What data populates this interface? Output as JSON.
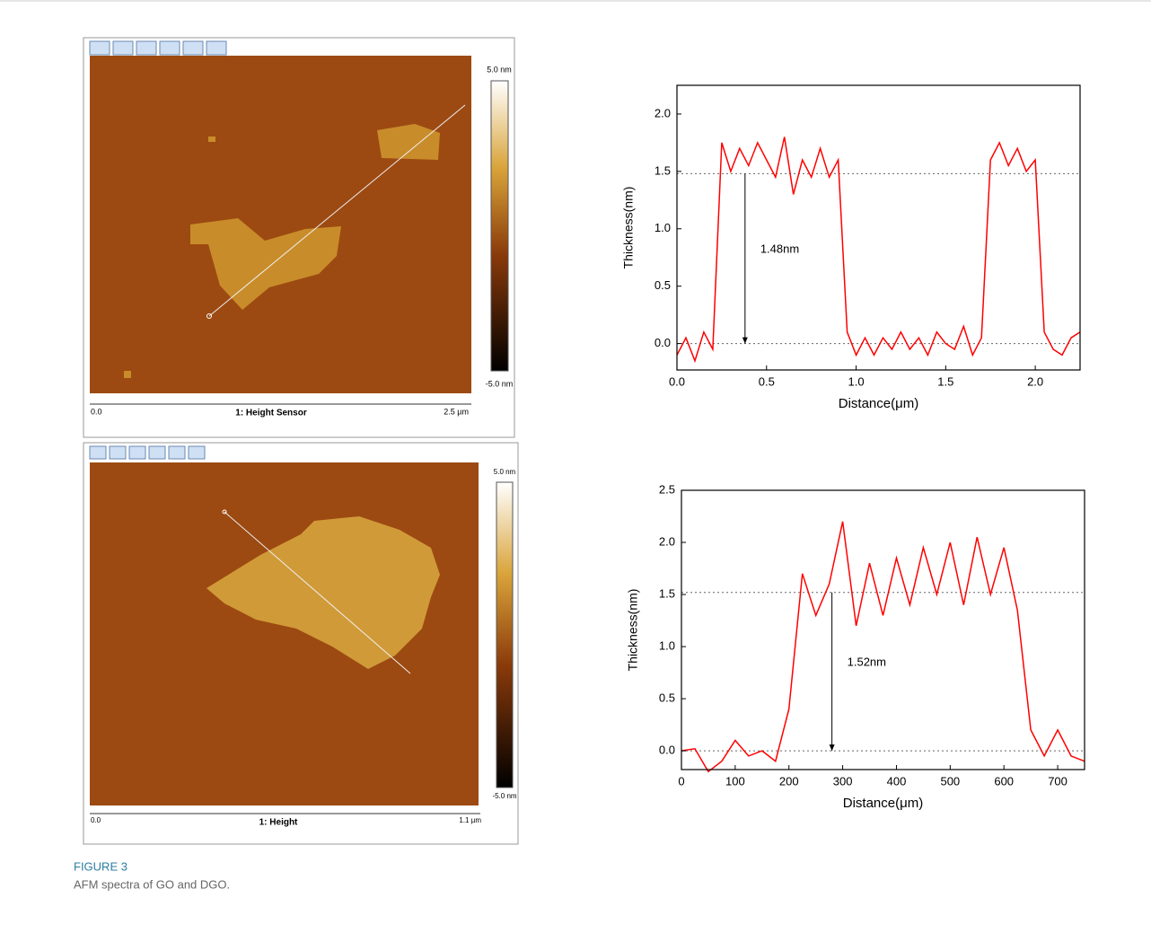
{
  "afm_images": [
    {
      "scale_max": "5.0 nm",
      "scale_min": "-5.0 nm",
      "axis_start": "0.0",
      "channel": "1: Height Sensor",
      "axis_end": "2.5 µm"
    },
    {
      "scale_max": "5.0 nm",
      "scale_min": "-5.0 nm",
      "axis_start": "0.0",
      "channel": "1: Height",
      "axis_end": "1.1 µm"
    }
  ],
  "chart_data": [
    {
      "type": "line",
      "xlabel": "Distance(μm)",
      "ylabel": "Thickness(nm)",
      "color": "#ff0000",
      "x": [
        0,
        0.05,
        0.1,
        0.15,
        0.2,
        0.25,
        0.3,
        0.35,
        0.4,
        0.45,
        0.5,
        0.55,
        0.6,
        0.65,
        0.7,
        0.75,
        0.8,
        0.85,
        0.9,
        0.95,
        1.0,
        1.05,
        1.1,
        1.15,
        1.2,
        1.25,
        1.3,
        1.35,
        1.4,
        1.45,
        1.5,
        1.55,
        1.6,
        1.65,
        1.7,
        1.75,
        1.8,
        1.85,
        1.9,
        1.95,
        2.0,
        2.05,
        2.1,
        2.15,
        2.2,
        2.25
      ],
      "values": [
        -0.1,
        0.05,
        -0.15,
        0.1,
        -0.05,
        1.75,
        1.5,
        1.7,
        1.55,
        1.75,
        1.6,
        1.45,
        1.8,
        1.3,
        1.6,
        1.45,
        1.7,
        1.45,
        1.6,
        0.1,
        -0.1,
        0.05,
        -0.1,
        0.05,
        -0.05,
        0.1,
        -0.05,
        0.05,
        -0.1,
        0.1,
        0.0,
        -0.05,
        0.15,
        -0.1,
        0.05,
        1.6,
        1.75,
        1.55,
        1.7,
        1.5,
        1.6,
        0.1,
        -0.05,
        -0.1,
        0.05,
        0.1
      ],
      "xlim": [
        0,
        2.25
      ],
      "ylim": [
        -0.23,
        2.25
      ],
      "xticks": [
        {
          "value": 0,
          "label": "0.0"
        },
        {
          "value": 0.5,
          "label": "0.5"
        },
        {
          "value": 1,
          "label": "1.0"
        },
        {
          "value": 1.5,
          "label": "1.5"
        },
        {
          "value": 2,
          "label": "2.0"
        }
      ],
      "yticks": [
        {
          "value": 0,
          "label": "0.0"
        },
        {
          "value": 0.5,
          "label": "0.5"
        },
        {
          "value": 1,
          "label": "1.0"
        },
        {
          "value": 1.5,
          "label": "1.5"
        },
        {
          "value": 2,
          "label": "2.0"
        }
      ],
      "reference_lines": [
        1.48,
        0
      ],
      "annotation": {
        "text": "1.48nm",
        "x": 0.38,
        "from": 1.48,
        "to": 0
      }
    },
    {
      "type": "line",
      "xlabel": "Distance(μm)",
      "ylabel": "Thickness(nm)",
      "color": "#ff0000",
      "x": [
        0,
        25,
        50,
        75,
        100,
        125,
        150,
        175,
        200,
        225,
        250,
        275,
        300,
        325,
        350,
        375,
        400,
        425,
        450,
        475,
        500,
        525,
        550,
        575,
        600,
        625,
        650,
        675,
        700,
        725,
        750
      ],
      "values": [
        0,
        0.02,
        -0.2,
        -0.1,
        0.1,
        -0.05,
        0.0,
        -0.1,
        0.4,
        1.7,
        1.3,
        1.6,
        2.2,
        1.2,
        1.8,
        1.3,
        1.85,
        1.4,
        1.95,
        1.5,
        2.0,
        1.4,
        2.05,
        1.5,
        1.95,
        1.35,
        0.2,
        -0.05,
        0.2,
        -0.05,
        -0.1
      ],
      "xlim": [
        0,
        750
      ],
      "ylim": [
        -0.18,
        2.5
      ],
      "xticks": [
        0,
        100,
        200,
        300,
        400,
        500,
        600,
        700
      ],
      "yticks": [
        {
          "value": 0,
          "label": "0.0"
        },
        {
          "value": 0.5,
          "label": "0.5"
        },
        {
          "value": 1,
          "label": "1.0"
        },
        {
          "value": 1.5,
          "label": "1.5"
        },
        {
          "value": 2,
          "label": "2.0"
        },
        {
          "value": 2.5,
          "label": "2.5"
        }
      ],
      "reference_lines": [
        1.52,
        0
      ],
      "annotation": {
        "text": "1.52nm",
        "x": 280,
        "from": 1.52,
        "to": 0
      }
    }
  ],
  "caption": {
    "label": "FIGURE 3",
    "text": "AFM spectra of GO and DGO."
  }
}
